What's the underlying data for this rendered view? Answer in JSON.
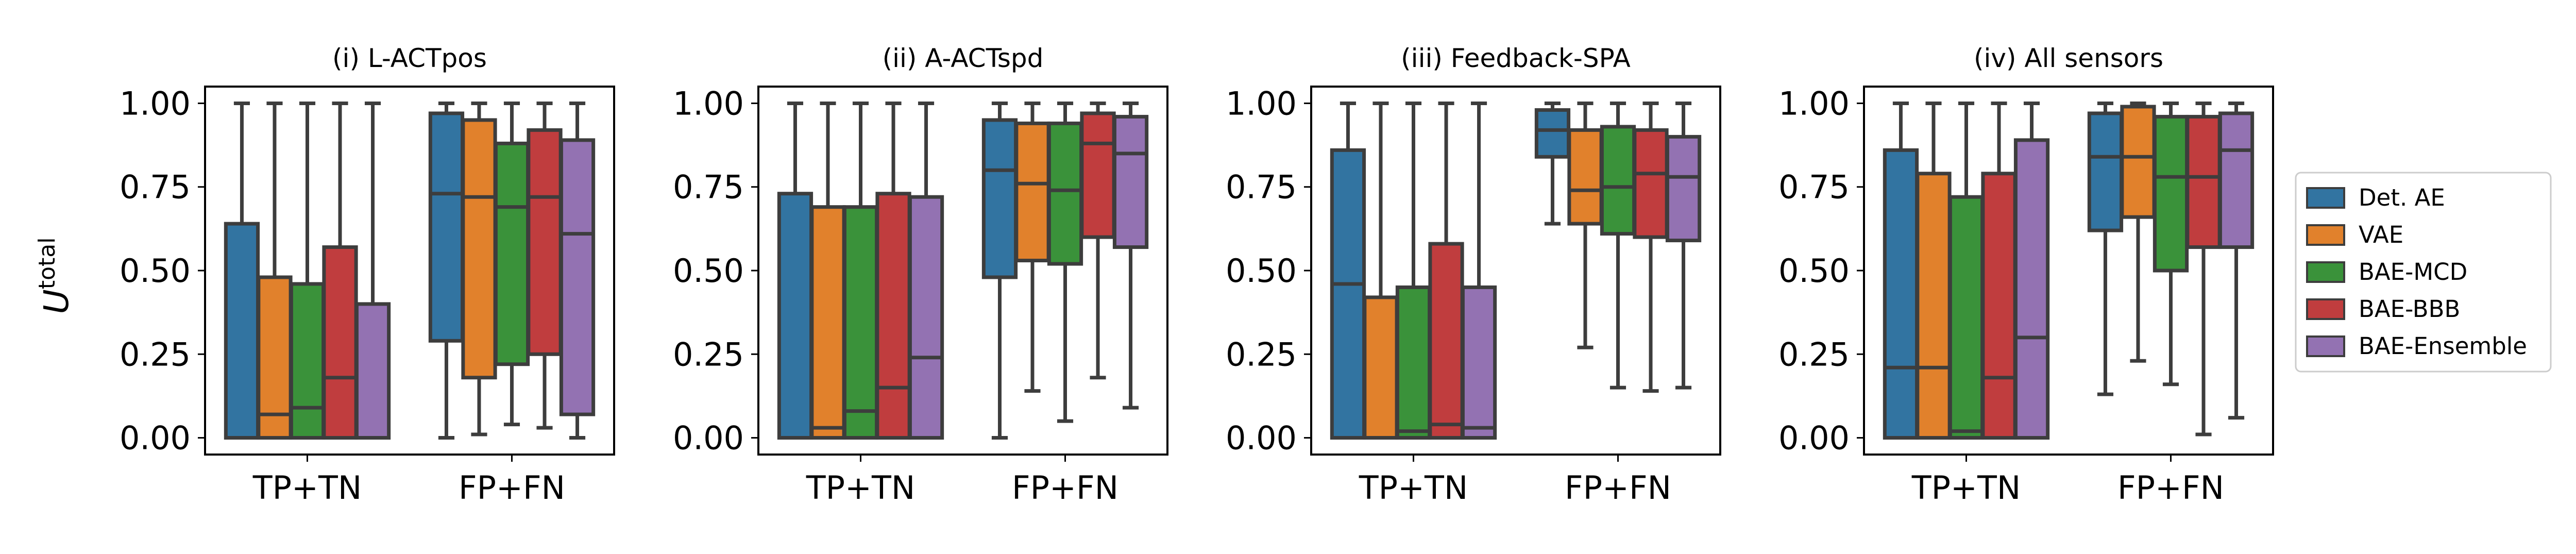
{
  "ylabel_base": "U",
  "ylabel_sup": "total",
  "legend": {
    "placement": "center-right",
    "entries": [
      {
        "name": "Det. AE",
        "color": "#3274a1"
      },
      {
        "name": "VAE",
        "color": "#e1812c"
      },
      {
        "name": "BAE-MCD",
        "color": "#3a923a"
      },
      {
        "name": "BAE-BBB",
        "color": "#c03d3e"
      },
      {
        "name": "BAE-Ensemble",
        "color": "#9372b2"
      }
    ]
  },
  "chart_data": [
    {
      "type": "box",
      "title": "(i) L-ACTpos",
      "categories": [
        "TP+TN",
        "FP+FN"
      ],
      "ylim": [
        -0.05,
        1.05
      ],
      "yticks": [
        0.0,
        0.25,
        0.5,
        0.75,
        1.0
      ],
      "ytick_labels": [
        "0.00",
        "0.25",
        "0.50",
        "0.75",
        "1.00"
      ],
      "series": [
        {
          "name": "Det. AE",
          "boxes": [
            {
              "whislo": 0.0,
              "q1": 0.0,
              "med": 0.0,
              "q3": 0.64,
              "whishi": 1.0
            },
            {
              "whislo": 0.0,
              "q1": 0.29,
              "med": 0.73,
              "q3": 0.97,
              "whishi": 1.0
            }
          ]
        },
        {
          "name": "VAE",
          "boxes": [
            {
              "whislo": 0.0,
              "q1": 0.0,
              "med": 0.07,
              "q3": 0.48,
              "whishi": 1.0
            },
            {
              "whislo": 0.01,
              "q1": 0.18,
              "med": 0.72,
              "q3": 0.95,
              "whishi": 1.0
            }
          ]
        },
        {
          "name": "BAE-MCD",
          "boxes": [
            {
              "whislo": 0.0,
              "q1": 0.0,
              "med": 0.09,
              "q3": 0.46,
              "whishi": 1.0
            },
            {
              "whislo": 0.04,
              "q1": 0.22,
              "med": 0.69,
              "q3": 0.88,
              "whishi": 1.0
            }
          ]
        },
        {
          "name": "BAE-BBB",
          "boxes": [
            {
              "whislo": 0.0,
              "q1": 0.0,
              "med": 0.18,
              "q3": 0.57,
              "whishi": 1.0
            },
            {
              "whislo": 0.03,
              "q1": 0.25,
              "med": 0.72,
              "q3": 0.92,
              "whishi": 1.0
            }
          ]
        },
        {
          "name": "BAE-Ensemble",
          "boxes": [
            {
              "whislo": 0.0,
              "q1": 0.0,
              "med": 0.0,
              "q3": 0.4,
              "whishi": 1.0
            },
            {
              "whislo": 0.0,
              "q1": 0.07,
              "med": 0.61,
              "q3": 0.89,
              "whishi": 1.0
            }
          ]
        }
      ]
    },
    {
      "type": "box",
      "title": "(ii) A-ACTspd",
      "categories": [
        "TP+TN",
        "FP+FN"
      ],
      "ylim": [
        -0.05,
        1.05
      ],
      "yticks": [
        0.0,
        0.25,
        0.5,
        0.75,
        1.0
      ],
      "ytick_labels": [
        "0.00",
        "0.25",
        "0.50",
        "0.75",
        "1.00"
      ],
      "series": [
        {
          "name": "Det. AE",
          "boxes": [
            {
              "whislo": 0.0,
              "q1": 0.0,
              "med": 0.0,
              "q3": 0.73,
              "whishi": 1.0
            },
            {
              "whislo": 0.0,
              "q1": 0.48,
              "med": 0.8,
              "q3": 0.95,
              "whishi": 1.0
            }
          ]
        },
        {
          "name": "VAE",
          "boxes": [
            {
              "whislo": 0.0,
              "q1": 0.0,
              "med": 0.03,
              "q3": 0.69,
              "whishi": 1.0
            },
            {
              "whislo": 0.14,
              "q1": 0.53,
              "med": 0.76,
              "q3": 0.94,
              "whishi": 1.0
            }
          ]
        },
        {
          "name": "BAE-MCD",
          "boxes": [
            {
              "whislo": 0.0,
              "q1": 0.0,
              "med": 0.08,
              "q3": 0.69,
              "whishi": 1.0
            },
            {
              "whislo": 0.05,
              "q1": 0.52,
              "med": 0.74,
              "q3": 0.94,
              "whishi": 1.0
            }
          ]
        },
        {
          "name": "BAE-BBB",
          "boxes": [
            {
              "whislo": 0.0,
              "q1": 0.0,
              "med": 0.15,
              "q3": 0.73,
              "whishi": 1.0
            },
            {
              "whislo": 0.18,
              "q1": 0.6,
              "med": 0.88,
              "q3": 0.97,
              "whishi": 1.0
            }
          ]
        },
        {
          "name": "BAE-Ensemble",
          "boxes": [
            {
              "whislo": 0.0,
              "q1": 0.0,
              "med": 0.24,
              "q3": 0.72,
              "whishi": 1.0
            },
            {
              "whislo": 0.09,
              "q1": 0.57,
              "med": 0.85,
              "q3": 0.96,
              "whishi": 1.0
            }
          ]
        }
      ]
    },
    {
      "type": "box",
      "title": "(iii) Feedback-SPA",
      "categories": [
        "TP+TN",
        "FP+FN"
      ],
      "ylim": [
        -0.05,
        1.05
      ],
      "yticks": [
        0.0,
        0.25,
        0.5,
        0.75,
        1.0
      ],
      "ytick_labels": [
        "0.00",
        "0.25",
        "0.50",
        "0.75",
        "1.00"
      ],
      "series": [
        {
          "name": "Det. AE",
          "boxes": [
            {
              "whislo": 0.0,
              "q1": 0.0,
              "med": 0.46,
              "q3": 0.86,
              "whishi": 1.0
            },
            {
              "whislo": 0.64,
              "q1": 0.84,
              "med": 0.92,
              "q3": 0.98,
              "whishi": 1.0
            }
          ]
        },
        {
          "name": "VAE",
          "boxes": [
            {
              "whislo": 0.0,
              "q1": 0.0,
              "med": 0.0,
              "q3": 0.42,
              "whishi": 1.0
            },
            {
              "whislo": 0.27,
              "q1": 0.64,
              "med": 0.74,
              "q3": 0.92,
              "whishi": 1.0
            }
          ]
        },
        {
          "name": "BAE-MCD",
          "boxes": [
            {
              "whislo": 0.0,
              "q1": 0.0,
              "med": 0.02,
              "q3": 0.45,
              "whishi": 1.0
            },
            {
              "whislo": 0.15,
              "q1": 0.61,
              "med": 0.75,
              "q3": 0.93,
              "whishi": 1.0
            }
          ]
        },
        {
          "name": "BAE-BBB",
          "boxes": [
            {
              "whislo": 0.0,
              "q1": 0.0,
              "med": 0.04,
              "q3": 0.58,
              "whishi": 1.0
            },
            {
              "whislo": 0.14,
              "q1": 0.6,
              "med": 0.79,
              "q3": 0.92,
              "whishi": 1.0
            }
          ]
        },
        {
          "name": "BAE-Ensemble",
          "boxes": [
            {
              "whislo": 0.0,
              "q1": 0.0,
              "med": 0.03,
              "q3": 0.45,
              "whishi": 1.0
            },
            {
              "whislo": 0.15,
              "q1": 0.59,
              "med": 0.78,
              "q3": 0.9,
              "whishi": 1.0
            }
          ]
        }
      ]
    },
    {
      "type": "box",
      "title": "(iv) All sensors",
      "categories": [
        "TP+TN",
        "FP+FN"
      ],
      "ylim": [
        -0.05,
        1.05
      ],
      "yticks": [
        0.0,
        0.25,
        0.5,
        0.75,
        1.0
      ],
      "ytick_labels": [
        "0.00",
        "0.25",
        "0.50",
        "0.75",
        "1.00"
      ],
      "series": [
        {
          "name": "Det. AE",
          "boxes": [
            {
              "whislo": 0.0,
              "q1": 0.0,
              "med": 0.21,
              "q3": 0.86,
              "whishi": 1.0
            },
            {
              "whislo": 0.13,
              "q1": 0.62,
              "med": 0.84,
              "q3": 0.97,
              "whishi": 1.0
            }
          ]
        },
        {
          "name": "VAE",
          "boxes": [
            {
              "whislo": 0.0,
              "q1": 0.0,
              "med": 0.21,
              "q3": 0.79,
              "whishi": 1.0
            },
            {
              "whislo": 0.23,
              "q1": 0.66,
              "med": 0.84,
              "q3": 0.99,
              "whishi": 1.0
            }
          ]
        },
        {
          "name": "BAE-MCD",
          "boxes": [
            {
              "whislo": 0.0,
              "q1": 0.0,
              "med": 0.02,
              "q3": 0.72,
              "whishi": 1.0
            },
            {
              "whislo": 0.16,
              "q1": 0.5,
              "med": 0.78,
              "q3": 0.96,
              "whishi": 1.0
            }
          ]
        },
        {
          "name": "BAE-BBB",
          "boxes": [
            {
              "whislo": 0.0,
              "q1": 0.0,
              "med": 0.18,
              "q3": 0.79,
              "whishi": 1.0
            },
            {
              "whislo": 0.01,
              "q1": 0.57,
              "med": 0.78,
              "q3": 0.96,
              "whishi": 1.0
            }
          ]
        },
        {
          "name": "BAE-Ensemble",
          "boxes": [
            {
              "whislo": 0.0,
              "q1": 0.0,
              "med": 0.3,
              "q3": 0.89,
              "whishi": 1.0
            },
            {
              "whislo": 0.06,
              "q1": 0.57,
              "med": 0.86,
              "q3": 0.97,
              "whishi": 1.0
            }
          ]
        }
      ]
    }
  ]
}
